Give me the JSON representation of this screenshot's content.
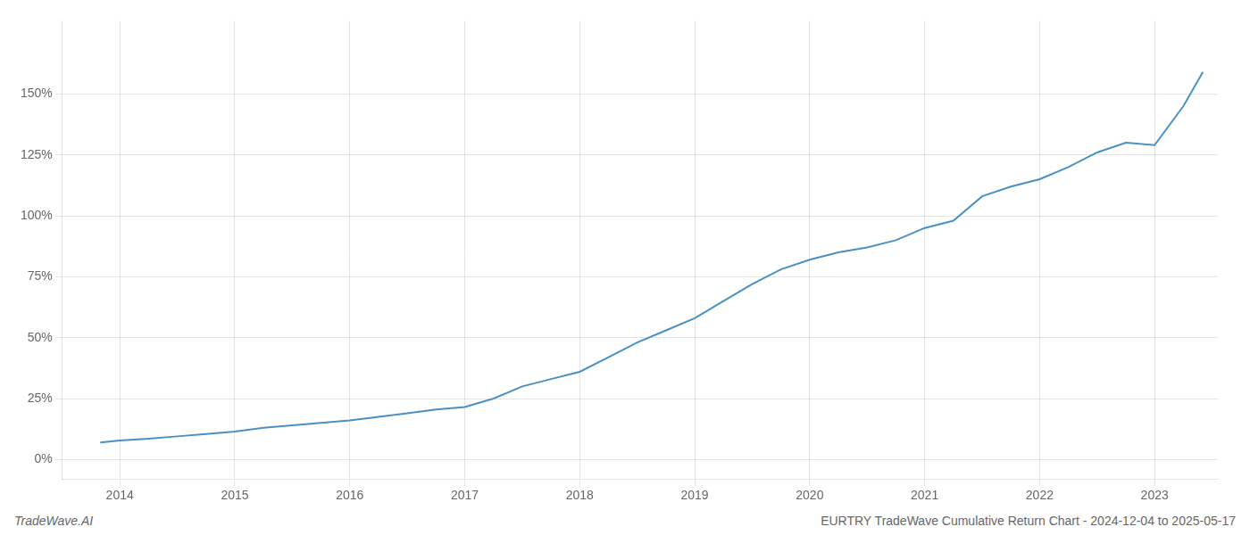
{
  "chart_data": {
    "type": "line",
    "title": "EURTRY TradeWave Cumulative Return Chart - 2024-12-04 to 2025-05-17",
    "annotations": [
      "TradeWave.AI"
    ],
    "x": [
      2013.83,
      2014.0,
      2014.25,
      2014.5,
      2014.75,
      2015.0,
      2015.25,
      2015.5,
      2015.75,
      2016.0,
      2016.25,
      2016.5,
      2016.75,
      2017.0,
      2017.25,
      2017.5,
      2017.75,
      2018.0,
      2018.25,
      2018.5,
      2018.75,
      2019.0,
      2019.25,
      2019.5,
      2019.75,
      2020.0,
      2020.25,
      2020.5,
      2020.75,
      2021.0,
      2021.25,
      2021.5,
      2021.75,
      2022.0,
      2022.25,
      2022.5,
      2022.75,
      2023.0,
      2023.25,
      2023.42
    ],
    "values": [
      7,
      7.8,
      8.5,
      9.5,
      10.5,
      11.5,
      13,
      14,
      15,
      16,
      17.5,
      19,
      20.5,
      21.5,
      25,
      30,
      33,
      36,
      42,
      48,
      53,
      58,
      65,
      72,
      78,
      82,
      85,
      87,
      90,
      95,
      98,
      108,
      112,
      115,
      120,
      126,
      130,
      129,
      145,
      159
    ],
    "color": "#4a90c4",
    "xlim": [
      2013.5,
      2023.55
    ],
    "xticks": [
      2014,
      2015,
      2016,
      2017,
      2018,
      2019,
      2020,
      2021,
      2022,
      2023
    ],
    "ylim": [
      -8,
      180
    ],
    "yticks": [
      {
        "value": 0,
        "label": "0%"
      },
      {
        "value": 25,
        "label": "25%"
      },
      {
        "value": 50,
        "label": "50%"
      },
      {
        "value": 75,
        "label": "75%"
      },
      {
        "value": 100,
        "label": "100%"
      },
      {
        "value": 125,
        "label": "125%"
      },
      {
        "value": 150,
        "label": "150%"
      }
    ],
    "grid": true
  }
}
